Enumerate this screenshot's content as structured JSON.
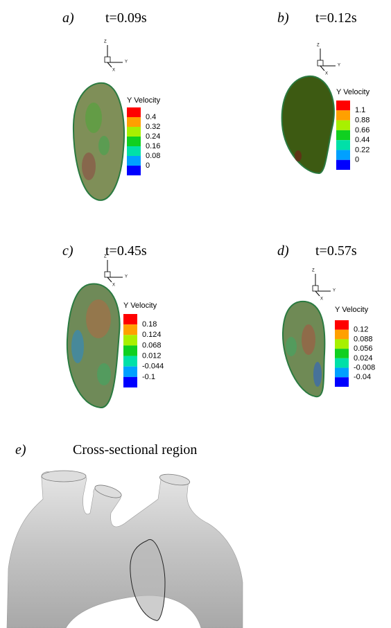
{
  "panels": [
    {
      "label": "a)",
      "time": "t=0.09s",
      "legend": {
        "title": "Y Velocity",
        "ticks": [
          "0.4",
          "0.32",
          "0.24",
          "0.16",
          "0.08",
          "0"
        ]
      }
    },
    {
      "label": "b)",
      "time": "t=0.12s",
      "legend": {
        "title": "Y Velocity",
        "ticks": [
          "1.1",
          "0.88",
          "0.66",
          "0.44",
          "0.22",
          "0"
        ]
      }
    },
    {
      "label": "c)",
      "time": "t=0.45s",
      "legend": {
        "title": "Y Velocity",
        "ticks": [
          "0.18",
          "0.124",
          "0.068",
          "0.012",
          "-0.044",
          "-0.1"
        ]
      }
    },
    {
      "label": "d)",
      "time": "t=0.57s",
      "legend": {
        "title": "Y Velocity",
        "ticks": [
          "0.12",
          "0.088",
          "0.056",
          "0.024",
          "-0.008",
          "-0.04"
        ]
      }
    }
  ],
  "triad": {
    "z": "Z",
    "y": "Y",
    "x": "X"
  },
  "cross_section": {
    "label": "e)",
    "title": "Cross-sectional region"
  }
}
